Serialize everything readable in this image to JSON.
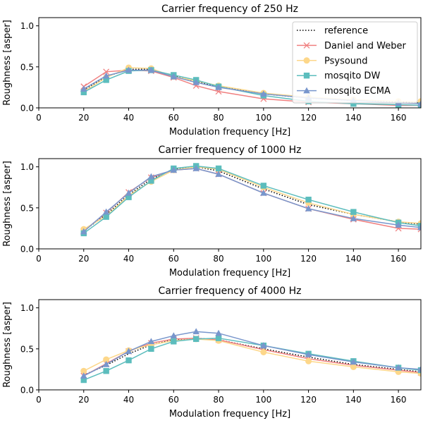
{
  "chart_data": [
    {
      "type": "line",
      "title": "Carrier frequency of 250 Hz",
      "xlabel": "Modulation frequency [Hz]",
      "ylabel": "Roughness [asper]",
      "xlim": [
        0,
        170
      ],
      "ylim": [
        0,
        1.1
      ],
      "xticks": [
        0,
        20,
        40,
        60,
        80,
        100,
        120,
        140,
        160
      ],
      "yticks": [
        0.0,
        0.5,
        1.0
      ],
      "ytick_labels": [
        "0.0",
        "0.5",
        "1.0"
      ],
      "grid": false,
      "legend": "top-right",
      "series": [
        {
          "name": "reference",
          "style": "dotted",
          "marker": "none",
          "color": "#000000",
          "x": [
            20,
            30,
            40,
            50,
            60,
            70,
            80,
            100,
            120,
            140,
            160,
            170
          ],
          "y": [
            0.22,
            0.38,
            0.47,
            0.47,
            0.39,
            0.32,
            0.26,
            0.17,
            0.12,
            0.09,
            0.07,
            0.06
          ]
        },
        {
          "name": "Daniel and Weber",
          "style": "solid",
          "marker": "x",
          "color": "#f08080",
          "x": [
            20,
            30,
            40,
            50,
            60,
            70,
            80,
            100,
            120,
            140,
            160,
            170
          ],
          "y": [
            0.26,
            0.44,
            0.46,
            0.45,
            0.37,
            0.27,
            0.2,
            0.11,
            0.07,
            0.05,
            0.03,
            0.03
          ]
        },
        {
          "name": "Psysound",
          "style": "solid",
          "marker": "circle",
          "color": "#fdd78a",
          "x": [
            20,
            30,
            40,
            50,
            60,
            70,
            80,
            100,
            120,
            140,
            160,
            170
          ],
          "y": [
            0.2,
            0.37,
            0.49,
            0.48,
            0.38,
            0.33,
            0.27,
            0.18,
            0.13,
            0.1,
            0.08,
            0.08
          ]
        },
        {
          "name": "mosqito DW",
          "style": "solid",
          "marker": "square",
          "color": "#5cbdbd",
          "x": [
            20,
            30,
            40,
            50,
            60,
            70,
            80,
            100,
            120,
            140,
            160,
            170
          ],
          "y": [
            0.19,
            0.34,
            0.45,
            0.46,
            0.4,
            0.34,
            0.26,
            0.15,
            0.08,
            0.05,
            0.04,
            0.03
          ]
        },
        {
          "name": "mosqito ECMA",
          "style": "solid",
          "marker": "triangle",
          "color": "#7896cc",
          "x": [
            20,
            30,
            40,
            50,
            60,
            70,
            80,
            100,
            120,
            140,
            160,
            170
          ],
          "y": [
            0.23,
            0.39,
            0.46,
            0.46,
            0.38,
            0.31,
            0.25,
            0.17,
            0.12,
            0.09,
            0.06,
            0.05
          ]
        }
      ]
    },
    {
      "type": "line",
      "title": "Carrier frequency of 1000 Hz",
      "xlabel": "Modulation frequency [Hz]",
      "ylabel": "Roughness [asper]",
      "xlim": [
        0,
        170
      ],
      "ylim": [
        0,
        1.1
      ],
      "xticks": [
        0,
        20,
        40,
        60,
        80,
        100,
        120,
        140,
        160
      ],
      "yticks": [
        0.0,
        0.5,
        1.0
      ],
      "ytick_labels": [
        "0.0",
        "0.5",
        "1.0"
      ],
      "grid": false,
      "series": [
        {
          "name": "reference",
          "style": "dotted",
          "marker": "none",
          "color": "#000000",
          "x": [
            20,
            30,
            40,
            50,
            60,
            70,
            80,
            100,
            120,
            140,
            160,
            170
          ],
          "y": [
            0.22,
            0.42,
            0.66,
            0.85,
            0.97,
            1.0,
            0.95,
            0.73,
            0.54,
            0.42,
            0.33,
            0.3
          ]
        },
        {
          "name": "Daniel and Weber",
          "style": "solid",
          "marker": "x",
          "color": "#f08080",
          "x": [
            20,
            30,
            40,
            50,
            60,
            70,
            80,
            100,
            120,
            140,
            160,
            170
          ],
          "y": [
            0.22,
            0.44,
            0.69,
            0.87,
            0.96,
            0.98,
            0.91,
            0.68,
            0.49,
            0.36,
            0.25,
            0.24
          ]
        },
        {
          "name": "Psysound",
          "style": "solid",
          "marker": "circle",
          "color": "#fdd78a",
          "x": [
            20,
            30,
            40,
            50,
            60,
            70,
            80,
            100,
            120,
            140,
            160,
            170
          ],
          "y": [
            0.24,
            0.4,
            0.65,
            0.82,
            0.96,
            1.0,
            0.97,
            0.75,
            0.56,
            0.42,
            0.33,
            0.31
          ]
        },
        {
          "name": "mosqito DW",
          "style": "solid",
          "marker": "square",
          "color": "#5cbdbd",
          "x": [
            20,
            30,
            40,
            50,
            60,
            70,
            80,
            100,
            120,
            140,
            160,
            170
          ],
          "y": [
            0.19,
            0.39,
            0.63,
            0.83,
            0.98,
            1.01,
            0.98,
            0.77,
            0.6,
            0.45,
            0.32,
            0.28
          ]
        },
        {
          "name": "mosqito ECMA",
          "style": "solid",
          "marker": "triangle",
          "color": "#7896cc",
          "x": [
            20,
            30,
            40,
            50,
            60,
            70,
            80,
            100,
            120,
            140,
            160,
            170
          ],
          "y": [
            0.21,
            0.45,
            0.68,
            0.88,
            0.96,
            0.98,
            0.91,
            0.68,
            0.49,
            0.37,
            0.29,
            0.26
          ]
        }
      ]
    },
    {
      "type": "line",
      "title": "Carrier frequency of 4000 Hz",
      "xlabel": "Modulation frequency [Hz]",
      "ylabel": "Roughness [asper]",
      "xlim": [
        0,
        170
      ],
      "ylim": [
        0,
        1.1
      ],
      "xticks": [
        0,
        20,
        40,
        60,
        80,
        100,
        120,
        140,
        160
      ],
      "yticks": [
        0.0,
        0.5,
        1.0
      ],
      "ytick_labels": [
        "0.0",
        "0.5",
        "1.0"
      ],
      "grid": false,
      "series": [
        {
          "name": "reference",
          "style": "dotted",
          "marker": "none",
          "color": "#000000",
          "x": [
            20,
            30,
            40,
            50,
            60,
            70,
            80,
            100,
            120,
            140,
            160,
            170
          ],
          "y": [
            0.18,
            0.3,
            0.44,
            0.55,
            0.61,
            0.63,
            0.61,
            0.5,
            0.4,
            0.31,
            0.25,
            0.22
          ]
        },
        {
          "name": "Daniel and Weber",
          "style": "solid",
          "marker": "x",
          "color": "#f08080",
          "x": [
            20,
            30,
            40,
            50,
            60,
            70,
            80,
            100,
            120,
            140,
            160,
            170
          ],
          "y": [
            0.17,
            0.32,
            0.47,
            0.57,
            0.62,
            0.63,
            0.61,
            0.49,
            0.38,
            0.3,
            0.24,
            0.21
          ]
        },
        {
          "name": "Psysound",
          "style": "solid",
          "marker": "circle",
          "color": "#fdd78a",
          "x": [
            20,
            30,
            40,
            50,
            60,
            70,
            80,
            100,
            120,
            140,
            160,
            170
          ],
          "y": [
            0.23,
            0.37,
            0.48,
            0.55,
            0.6,
            0.62,
            0.6,
            0.46,
            0.35,
            0.28,
            0.22,
            0.2
          ]
        },
        {
          "name": "mosqito DW",
          "style": "solid",
          "marker": "square",
          "color": "#5cbdbd",
          "x": [
            20,
            30,
            40,
            50,
            60,
            70,
            80,
            100,
            120,
            140,
            160,
            170
          ],
          "y": [
            0.12,
            0.23,
            0.36,
            0.5,
            0.59,
            0.62,
            0.63,
            0.54,
            0.44,
            0.35,
            0.27,
            0.24
          ]
        },
        {
          "name": "mosqito ECMA",
          "style": "solid",
          "marker": "triangle",
          "color": "#7896cc",
          "x": [
            20,
            30,
            40,
            50,
            60,
            70,
            80,
            100,
            120,
            140,
            160,
            170
          ],
          "y": [
            0.17,
            0.31,
            0.47,
            0.59,
            0.66,
            0.71,
            0.69,
            0.54,
            0.43,
            0.34,
            0.27,
            0.25
          ]
        }
      ]
    }
  ]
}
